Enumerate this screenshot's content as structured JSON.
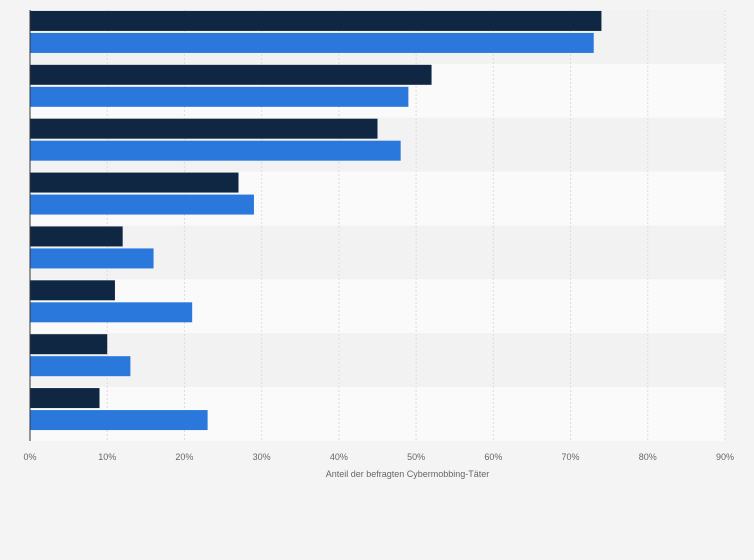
{
  "chart_data": {
    "type": "bar",
    "orientation": "horizontal",
    "categories": [
      "",
      "",
      "",
      "",
      "",
      "",
      "",
      ""
    ],
    "series": [
      {
        "values": [
          74,
          52,
          45,
          27,
          12,
          11,
          10,
          9
        ],
        "color": "#0f2742"
      },
      {
        "values": [
          73,
          49,
          48,
          29,
          16,
          21,
          13,
          23
        ],
        "color": "#2a78dc"
      }
    ],
    "xlim": [
      0,
      90
    ],
    "xticks": [
      "0%",
      "10%",
      "20%",
      "30%",
      "40%",
      "50%",
      "60%",
      "70%",
      "80%",
      "90%"
    ],
    "xlabel": "Anteil der befragten Cybermobbing-Täter",
    "grid": true,
    "legend": "none"
  },
  "colors": {
    "background": "#f4f4f4",
    "band_light": "#fafafa",
    "band_dark": "#f2f2f2",
    "grid": "#dddddd",
    "axis": "#333333"
  }
}
